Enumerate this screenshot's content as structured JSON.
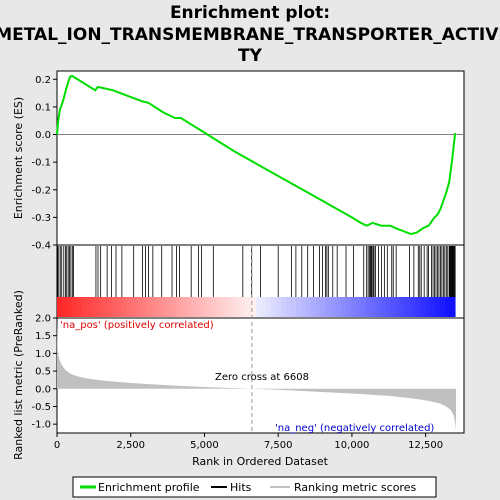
{
  "chart_data": {
    "type": "line",
    "title_lines": [
      "Enrichment plot:",
      "METAL_ION_TRANSMEMBRANE_TRANSPORTER_ACTIVI",
      "TY"
    ],
    "xlabel": "Rank in Ordered Dataset",
    "xlim": [
      0,
      13800
    ],
    "x_ticks": [
      0,
      2500,
      5000,
      7500,
      10000,
      12500
    ],
    "x_tick_labels": [
      "0",
      "2,500",
      "5,000",
      "7,500",
      "10,000",
      "12,500"
    ],
    "top_panel": {
      "ylabel": "Enrichment score (ES)",
      "ylim": [
        -0.4,
        0.23
      ],
      "y_ticks": [
        -0.4,
        -0.3,
        -0.2,
        -0.1,
        0.0,
        0.1,
        0.2
      ],
      "y_tick_labels": [
        "-0.4",
        "-0.3",
        "-0.2",
        "-0.1",
        "0.0",
        "0.1",
        "0.2"
      ],
      "series_name": "Enrichment profile",
      "color": "#00dd00",
      "x": [
        0,
        40,
        100,
        200,
        300,
        380,
        450,
        520,
        1300,
        1380,
        1500,
        1900,
        2400,
        2900,
        3100,
        3600,
        4000,
        4200,
        4800,
        5100,
        6000,
        7000,
        8000,
        8500,
        9000,
        9500,
        10000,
        10300,
        10500,
        10600,
        10700,
        11000,
        11300,
        11500,
        12000,
        12200,
        12400,
        12600,
        12800,
        12900,
        13000,
        13100,
        13200,
        13300,
        13350,
        13400,
        13450,
        13500
      ],
      "y": [
        0.0,
        0.05,
        0.09,
        0.12,
        0.16,
        0.19,
        0.21,
        0.212,
        0.16,
        0.172,
        0.17,
        0.16,
        0.14,
        0.12,
        0.115,
        0.08,
        0.06,
        0.06,
        0.02,
        0.0,
        -0.06,
        -0.12,
        -0.18,
        -0.21,
        -0.24,
        -0.27,
        -0.3,
        -0.32,
        -0.33,
        -0.325,
        -0.32,
        -0.33,
        -0.33,
        -0.34,
        -0.36,
        -0.355,
        -0.34,
        -0.33,
        -0.3,
        -0.29,
        -0.27,
        -0.24,
        -0.21,
        -0.17,
        -0.13,
        -0.09,
        -0.04,
        0.005
      ]
    },
    "hits": {
      "series_name": "Hits",
      "positions": [
        20,
        60,
        110,
        160,
        230,
        290,
        330,
        380,
        420,
        470,
        520,
        560,
        1320,
        1390,
        1480,
        1700,
        1850,
        2000,
        2200,
        2600,
        2900,
        3000,
        3100,
        3250,
        3550,
        3900,
        4050,
        4150,
        4550,
        4800,
        4900,
        5300,
        6300,
        6600,
        6900,
        7500,
        7950,
        8100,
        8300,
        8500,
        8700,
        8900,
        9000,
        9100,
        9150,
        9200,
        9350,
        9500,
        9800,
        10050,
        10400,
        10500,
        10550,
        10600,
        10620,
        10650,
        10680,
        10720,
        10750,
        10800,
        10900,
        11000,
        11100,
        11200,
        11350,
        11400,
        11500,
        11950,
        12100,
        12250,
        12300,
        12350,
        12450,
        12550,
        12600,
        12700,
        12750,
        12800,
        12850,
        12900,
        12950,
        13000,
        13050,
        13100,
        13150,
        13200,
        13250,
        13300,
        13320,
        13340,
        13360,
        13380,
        13400,
        13420,
        13440,
        13460,
        13480,
        13500
      ]
    },
    "bottom_panel": {
      "ylabel": "Ranked list metric (PreRanked)",
      "ylim": [
        -1.25,
        2.0
      ],
      "y_ticks": [
        -1.0,
        -0.5,
        0.0,
        0.5,
        1.0,
        1.5,
        2.0
      ],
      "y_tick_labels": [
        "-1.0",
        "-0.5",
        "0.0",
        "0.5",
        "1.0",
        "1.5",
        "2.0"
      ],
      "series_name": "Ranking metric scores",
      "fill_color": "#c0c0c0",
      "x": [
        0,
        20,
        60,
        120,
        200,
        300,
        450,
        650,
        900,
        1200,
        1600,
        2000,
        2600,
        3200,
        4000,
        5000,
        6000,
        6608,
        7500,
        8500,
        9500,
        10500,
        11200,
        11800,
        12300,
        12700,
        13000,
        13200,
        13350,
        13450,
        13500,
        13530
      ],
      "y": [
        1.95,
        1.15,
        0.9,
        0.75,
        0.62,
        0.52,
        0.43,
        0.36,
        0.31,
        0.27,
        0.23,
        0.2,
        0.16,
        0.13,
        0.09,
        0.05,
        0.02,
        0.0,
        -0.03,
        -0.07,
        -0.11,
        -0.16,
        -0.2,
        -0.25,
        -0.3,
        -0.36,
        -0.42,
        -0.5,
        -0.6,
        -0.75,
        -0.95,
        -1.2
      ]
    },
    "zero_cross": 6608,
    "zero_cross_label": "Zero cross at 6608",
    "pos_label": "'na_pos' (positively correlated)",
    "neg_label": "'na_neg' (negatively correlated)",
    "colors": {
      "pos": "#dd0000",
      "neg": "#0000cc",
      "hits": "#000000",
      "zero_line": "#999999"
    },
    "legend": {
      "placement": "bottom",
      "items": [
        {
          "label": "Enrichment profile",
          "color": "#00dd00"
        },
        {
          "label": "Hits",
          "color": "#000000"
        },
        {
          "label": "Ranking metric scores",
          "color": "#c0c0c0"
        }
      ]
    }
  }
}
